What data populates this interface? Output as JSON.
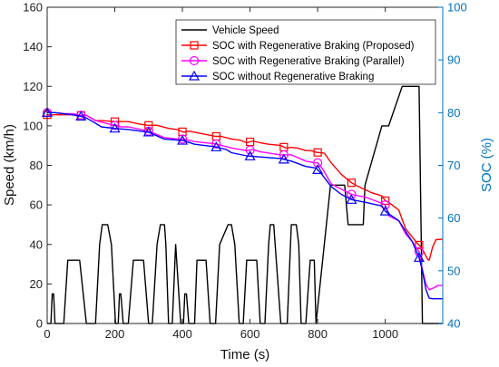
{
  "chart_data": {
    "type": "line",
    "xlabel": "Time (s)",
    "ylabel_left": "Speed (km/h)",
    "ylabel_right": "SOC (%)",
    "xlim": [
      0,
      1170
    ],
    "ylim_left": [
      0,
      160
    ],
    "ylim_right": [
      40,
      100
    ],
    "xticks": [
      0,
      200,
      400,
      600,
      800,
      1000
    ],
    "yticks_left": [
      0,
      20,
      40,
      60,
      80,
      100,
      120,
      140,
      160
    ],
    "yticks_right": [
      40,
      50,
      60,
      70,
      80,
      90,
      100
    ],
    "legend_position": "top-right",
    "colors": {
      "left_axis": "#000000",
      "right_axis": "#0072BD"
    },
    "series": [
      {
        "name": "Vehicle Speed",
        "axis": "left",
        "color": "#000000",
        "marker": "none",
        "x": [
          0,
          11,
          15,
          19,
          23,
          49,
          61,
          69,
          85,
          96,
          116,
          143,
          155,
          163,
          179,
          190,
          202,
          210,
          214,
          218,
          225,
          240,
          255,
          263,
          274,
          285,
          300,
          311,
          325,
          335,
          347,
          351,
          359,
          370,
          380,
          395,
          403,
          407,
          412,
          419,
          436,
          443,
          454,
          470,
          482,
          498,
          510,
          535,
          545,
          555,
          568,
          580,
          590,
          608,
          620,
          630,
          644,
          655,
          660,
          670,
          691,
          710,
          722,
          737,
          744,
          751,
          765,
          778,
          790,
          795,
          838,
          880,
          890,
          905,
          935,
          940,
          990,
          1010,
          1050,
          1078,
          1100,
          1110,
          1160,
          1170
        ],
        "y": [
          0,
          0,
          15,
          15,
          0,
          0,
          32,
          32,
          32,
          32,
          0,
          0,
          40,
          50,
          50,
          40,
          0,
          0,
          15,
          15,
          0,
          0,
          32,
          32,
          32,
          32,
          0,
          0,
          40,
          50,
          50,
          40,
          0,
          0,
          40,
          0,
          0,
          15,
          15,
          0,
          0,
          32,
          32,
          32,
          0,
          0,
          40,
          50,
          50,
          40,
          0,
          0,
          32,
          32,
          32,
          0,
          0,
          40,
          50,
          50,
          0,
          0,
          50,
          50,
          40,
          0,
          0,
          32,
          32,
          0,
          70,
          70,
          50,
          50,
          50,
          70,
          100,
          100,
          120,
          120,
          120,
          0,
          0,
          0
        ]
      },
      {
        "name": "SOC with Regenerative Braking (Proposed)",
        "axis": "right",
        "color": "#FF0000",
        "marker": "square",
        "x": [
          0,
          23,
          49,
          75,
          100,
          116,
          143,
          160,
          202,
          218,
          240,
          275,
          300,
          325,
          360,
          385,
          403,
          420,
          436,
          475,
          498,
          515,
          545,
          570,
          590,
          608,
          630,
          655,
          690,
          705,
          722,
          740,
          765,
          780,
          795,
          820,
          840,
          870,
          900,
          920,
          960,
          990,
          1000,
          1010,
          1040,
          1060,
          1090,
          1104,
          1115,
          1120,
          1125,
          1130,
          1140,
          1150,
          1170
        ],
        "y": [
          79.6,
          79.6,
          79.6,
          79.6,
          79.5,
          79.5,
          78.5,
          78.5,
          78.3,
          78.3,
          78.3,
          77.8,
          77.6,
          77.6,
          77.0,
          76.8,
          76.3,
          76.5,
          76.3,
          75.8,
          75.5,
          75.5,
          75.0,
          74.8,
          74.3,
          74.6,
          74.3,
          74.0,
          73.8,
          73.3,
          73.4,
          73.3,
          72.8,
          72.8,
          72.5,
          72.3,
          70.5,
          68.3,
          66.7,
          66.0,
          64.8,
          64.2,
          63.3,
          63.0,
          61.5,
          58.0,
          55.6,
          54.6,
          53.5,
          52.8,
          52.2,
          52.0,
          54.5,
          55.9,
          56.0
        ]
      },
      {
        "name": "SOC with Regenerative Braking (Parallel)",
        "axis": "right",
        "color": "#FF00FF",
        "marker": "circle",
        "x": [
          0,
          23,
          49,
          75,
          100,
          116,
          143,
          185,
          218,
          240,
          300,
          345,
          385,
          403,
          436,
          498,
          515,
          545,
          590,
          608,
          630,
          690,
          722,
          765,
          790,
          800,
          815,
          840,
          870,
          900,
          940,
          990,
          1000,
          1010,
          1040,
          1060,
          1080,
          1100,
          1110,
          1120,
          1130,
          1145,
          1155,
          1170
        ],
        "y": [
          80.0,
          80.0,
          79.8,
          79.8,
          79.5,
          79.5,
          78.5,
          77.8,
          77.3,
          77.3,
          76.5,
          75.3,
          75.0,
          75.0,
          74.5,
          74.1,
          73.8,
          73.3,
          72.8,
          73.0,
          72.6,
          72.0,
          72.0,
          70.8,
          70.5,
          70.5,
          69.3,
          66.5,
          65.5,
          64.5,
          64.0,
          62.8,
          62.5,
          60.4,
          59.5,
          57.0,
          55.5,
          53.6,
          50.2,
          47.5,
          46.4,
          46.8,
          47.2,
          47.2
        ]
      },
      {
        "name": "SOC without Regenerative Braking",
        "axis": "right",
        "color": "#0000FF",
        "marker": "triangle",
        "x": [
          0,
          23,
          49,
          75,
          100,
          116,
          143,
          160,
          202,
          240,
          300,
          345,
          385,
          403,
          436,
          498,
          530,
          545,
          590,
          630,
          690,
          722,
          765,
          795,
          810,
          840,
          870,
          900,
          940,
          990,
          1000,
          1010,
          1040,
          1060,
          1080,
          1100,
          1110,
          1120,
          1130,
          1140,
          1170
        ],
        "y": [
          80.0,
          80.0,
          79.8,
          79.6,
          79.3,
          79.0,
          78.0,
          77.3,
          77.0,
          76.8,
          76.3,
          75.0,
          74.8,
          74.7,
          74.0,
          73.5,
          73.0,
          72.4,
          71.8,
          71.6,
          71.3,
          70.8,
          69.8,
          69.5,
          68.5,
          66.0,
          64.5,
          63.5,
          63.0,
          62.3,
          61.3,
          60.8,
          59.5,
          57.5,
          55.5,
          52.5,
          50.0,
          46.5,
          44.8,
          44.7,
          44.7
        ]
      }
    ]
  }
}
